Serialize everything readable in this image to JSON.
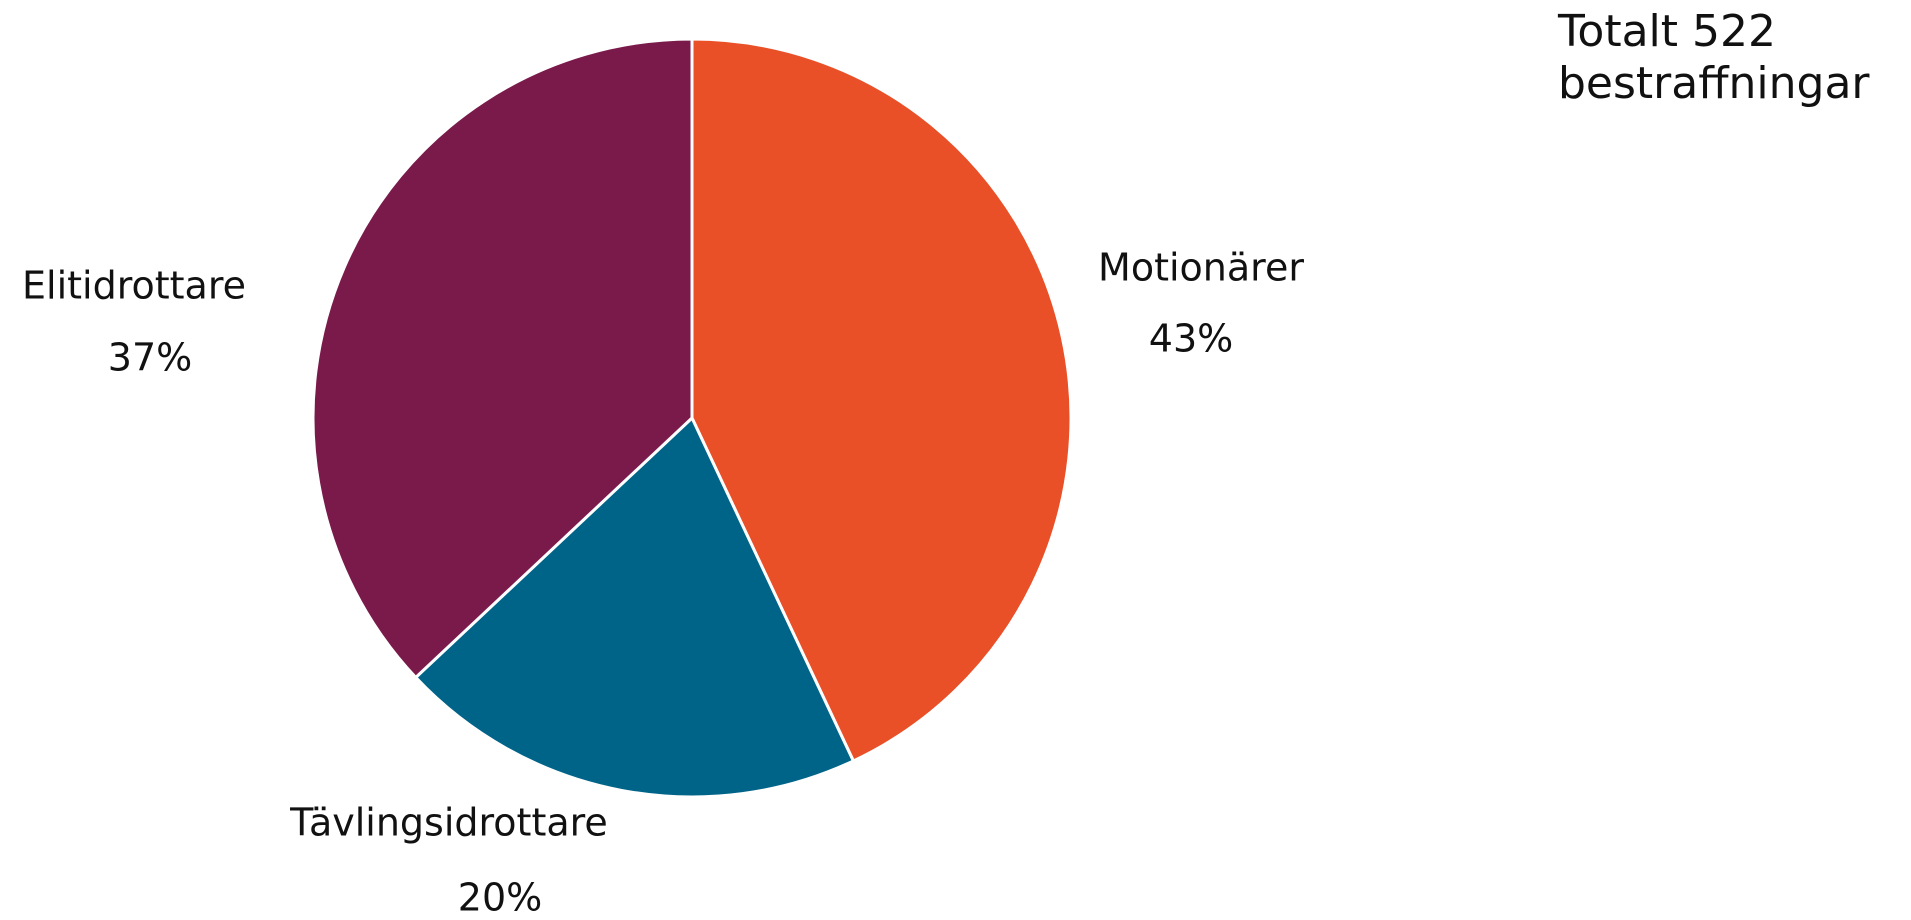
{
  "chart_data": {
    "type": "pie",
    "title": "Totalt 522 bestraffningar",
    "categories": [
      "Motionärer",
      "Tävlingsidrottare",
      "Elitidrottare"
    ],
    "values": [
      43,
      20,
      37
    ],
    "value_labels": [
      "43%",
      "20%",
      "37%"
    ],
    "colors": [
      "#e95028",
      "#006489",
      "#7a1a4b"
    ]
  }
}
